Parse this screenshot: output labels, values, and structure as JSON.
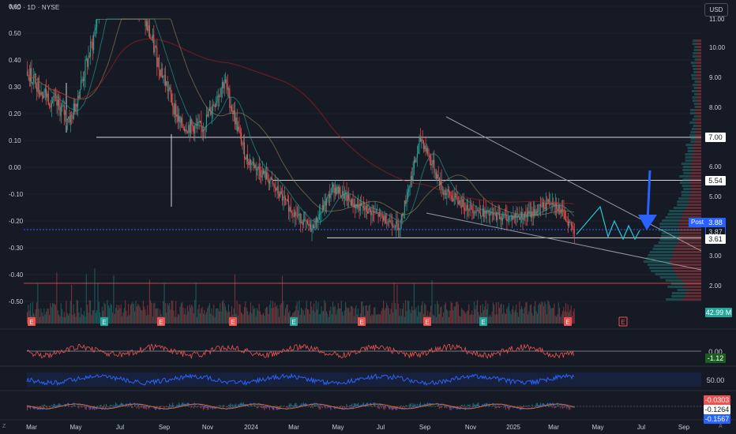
{
  "header": {
    "ticker": "NIO · 1D · NYSE",
    "currency": "USD"
  },
  "left_axis_ticks": [
    "0.60",
    "0.50",
    "0.40",
    "0.30",
    "0.20",
    "0.10",
    "0.00",
    "-0.10",
    "-0.20",
    "-0.30",
    "-0.40",
    "-0.50"
  ],
  "right_axis_ticks": [
    "11.00",
    "10.00",
    "9.00",
    "8.00",
    "7.00",
    "6.00",
    "5.00",
    "4.00",
    "3.00",
    "2.00"
  ],
  "x_axis_labels": [
    "Mar",
    "May",
    "Jul",
    "Sep",
    "Nov",
    "2024",
    "Mar",
    "May",
    "Jul",
    "Sep",
    "Nov",
    "2025",
    "Mar",
    "May",
    "Jul",
    "Sep"
  ],
  "price_labels": {
    "level_700": "7.00",
    "level_554": "5.54",
    "post_label": "Post",
    "post_price": "3.88",
    "last_price": "3.87",
    "level_361": "3.61",
    "volume": "42.99 M"
  },
  "indicator_labels": {
    "osc_zero": "0.00",
    "osc_value": "-1.12",
    "rsi_mid": "50.00",
    "macd_1": "-0.0303",
    "macd_2": "-0.1264",
    "macd_3": "-0.1567"
  },
  "earnings_marker": "E",
  "corner_labels": {
    "left": "Z",
    "right": "A"
  },
  "colors": {
    "up": "#26a69a",
    "down": "#ef5350",
    "background": "#161a25",
    "arrow": "#2962ff",
    "rsi": "#2962ff",
    "projection": "#26c6da"
  },
  "chart_data": {
    "type": "candlestick",
    "series_note": "NIO daily price, approximate closes by month",
    "x": [
      "2023-03",
      "2023-04",
      "2023-05",
      "2023-06",
      "2023-07",
      "2023-08",
      "2023-09",
      "2023-10",
      "2023-11",
      "2023-12",
      "2024-01",
      "2024-02",
      "2024-03",
      "2024-04",
      "2024-05",
      "2024-06",
      "2024-07",
      "2024-08",
      "2024-09",
      "2024-10",
      "2024-11",
      "2024-12",
      "2025-01",
      "2025-02",
      "2025-03",
      "2025-04"
    ],
    "close": [
      9.2,
      8.3,
      7.6,
      10.2,
      14.6,
      11.8,
      9.5,
      7.4,
      7.3,
      8.9,
      6.3,
      5.6,
      4.6,
      3.9,
      5.3,
      4.7,
      4.4,
      4.0,
      7.0,
      5.2,
      4.7,
      4.4,
      4.3,
      4.4,
      4.9,
      3.87
    ],
    "horizontal_levels": [
      7.0,
      5.54,
      3.61
    ],
    "y_range_right": [
      1.5,
      12.0
    ]
  }
}
